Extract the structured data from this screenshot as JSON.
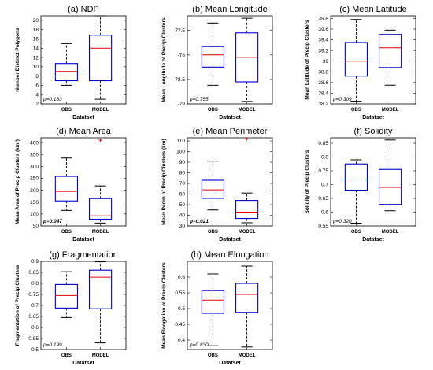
{
  "chart_data": [
    {
      "type": "box",
      "title": "(a) NDP",
      "ylabel": "Number Distinct Polygons",
      "xlabel": "Datatset",
      "categories": [
        "OBS",
        "MODEL"
      ],
      "ylim": [
        2,
        21
      ],
      "yticks": [
        "2",
        "4",
        "6",
        "8",
        "10",
        "12",
        "14",
        "16",
        "18",
        "20"
      ],
      "boxes": [
        {
          "name": "OBS",
          "whisker_low": 6,
          "q1": 7,
          "median": 9,
          "q3": 10.7,
          "whisker_high": 15,
          "outliers": []
        },
        {
          "name": "MODEL",
          "whisker_low": 3,
          "q1": 7,
          "median": 14,
          "q3": 16.8,
          "whisker_high": 21,
          "outliers": []
        }
      ],
      "pvalue": "p=0.183",
      "pvalue_bold": false
    },
    {
      "type": "box",
      "title": "(b) Mean Longitude",
      "ylabel": "Mean Longitude of Precip Clusters",
      "xlabel": "Datatset",
      "categories": [
        "OBS",
        "MODEL"
      ],
      "ylim": [
        -79,
        -77.2
      ],
      "yticks": [
        "-79",
        "-78.5",
        "-78",
        "-77.5"
      ],
      "boxes": [
        {
          "name": "OBS",
          "whisker_low": -78.62,
          "q1": -78.25,
          "median": -78.0,
          "q3": -77.83,
          "whisker_high": -77.35,
          "outliers": []
        },
        {
          "name": "MODEL",
          "whisker_low": -78.95,
          "q1": -78.55,
          "median": -78.05,
          "q3": -77.55,
          "whisker_high": -77.25,
          "outliers": []
        }
      ],
      "pvalue": "p=0.755",
      "pvalue_bold": false
    },
    {
      "type": "box",
      "title": "(c) Mean Latitude",
      "ylabel": "Mean Latitude of Precip Clusters",
      "xlabel": "Datatset",
      "categories": [
        "OBS",
        "MODEL"
      ],
      "ylim": [
        38.2,
        39.85
      ],
      "yticks": [
        "38.2",
        "38.4",
        "38.6",
        "38.8",
        "39",
        "39.2",
        "39.4",
        "39.6",
        "39.8"
      ],
      "boxes": [
        {
          "name": "OBS",
          "whisker_low": 38.25,
          "q1": 38.72,
          "median": 39.0,
          "q3": 39.35,
          "whisker_high": 39.78,
          "outliers": []
        },
        {
          "name": "MODEL",
          "whisker_low": 38.55,
          "q1": 38.88,
          "median": 39.25,
          "q3": 39.5,
          "whisker_high": 39.58,
          "outliers": []
        }
      ],
      "pvalue": "p=0.309",
      "pvalue_bold": false
    },
    {
      "type": "box",
      "title": "(d) Mean Area",
      "ylabel": "Mean Area of Precip Clusters (km²)",
      "xlabel": "Datatset",
      "categories": [
        "OBS",
        "MODEL"
      ],
      "ylim": [
        50,
        420
      ],
      "yticks": [
        "50",
        "100",
        "150",
        "200",
        "250",
        "300",
        "350",
        "400"
      ],
      "boxes": [
        {
          "name": "OBS",
          "whisker_low": 115,
          "q1": 155,
          "median": 195,
          "q3": 258,
          "whisker_high": 335,
          "outliers": []
        },
        {
          "name": "MODEL",
          "whisker_low": 62,
          "q1": 78,
          "median": 92,
          "q3": 165,
          "whisker_high": 218,
          "outliers": [
            410
          ]
        }
      ],
      "pvalue": "p=0.047",
      "pvalue_bold": true
    },
    {
      "type": "box",
      "title": "(e) Mean Perimeter",
      "ylabel": "Mean Perim of Precip Clusters (km)",
      "xlabel": "Datatset",
      "categories": [
        "OBS",
        "MODEL"
      ],
      "ylim": [
        30,
        113
      ],
      "yticks": [
        "30",
        "40",
        "50",
        "60",
        "70",
        "80",
        "90",
        "100",
        "110"
      ],
      "boxes": [
        {
          "name": "OBS",
          "whisker_low": 45,
          "q1": 56,
          "median": 64,
          "q3": 73,
          "whisker_high": 91,
          "outliers": []
        },
        {
          "name": "MODEL",
          "whisker_low": 33,
          "q1": 37,
          "median": 43,
          "q3": 54,
          "whisker_high": 61,
          "outliers": [
            112
          ]
        }
      ],
      "pvalue": "p=0.021",
      "pvalue_bold": true
    },
    {
      "type": "box",
      "title": "(f) Solidity",
      "ylabel": "Solidity of Precip Clusters",
      "xlabel": "Datatset",
      "categories": [
        "OBS",
        "MODEL"
      ],
      "ylim": [
        0.55,
        0.87
      ],
      "yticks": [
        "0.55",
        "0.6",
        "0.65",
        "0.7",
        "0.75",
        "0.8",
        "0.85"
      ],
      "boxes": [
        {
          "name": "OBS",
          "whisker_low": 0.56,
          "q1": 0.68,
          "median": 0.72,
          "q3": 0.775,
          "whisker_high": 0.79,
          "outliers": []
        },
        {
          "name": "MODEL",
          "whisker_low": 0.605,
          "q1": 0.628,
          "median": 0.69,
          "q3": 0.755,
          "whisker_high": 0.862,
          "outliers": []
        }
      ],
      "pvalue": "p=0.320",
      "pvalue_bold": false
    },
    {
      "type": "box",
      "title": "(g) Fragmentation",
      "ylabel": "Fragmentation of Precip Clusters",
      "xlabel": "Datatset",
      "categories": [
        "OBS",
        "MODEL"
      ],
      "ylim": [
        0.5,
        0.9
      ],
      "yticks": [
        "0.5",
        "0.55",
        "0.6",
        "0.65",
        "0.7",
        "0.75",
        "0.8",
        "0.85",
        "0.9"
      ],
      "boxes": [
        {
          "name": "OBS",
          "whisker_low": 0.645,
          "q1": 0.688,
          "median": 0.745,
          "q3": 0.795,
          "whisker_high": 0.853,
          "outliers": []
        },
        {
          "name": "MODEL",
          "whisker_low": 0.53,
          "q1": 0.685,
          "median": 0.828,
          "q3": 0.86,
          "whisker_high": 0.898,
          "outliers": []
        }
      ],
      "pvalue": "p=0.199",
      "pvalue_bold": false
    },
    {
      "type": "box",
      "title": "(h) Mean Elongation",
      "ylabel": "Mean Elongation of Precip Clusters",
      "xlabel": "Datatset",
      "categories": [
        "OBS",
        "MODEL"
      ],
      "ylim": [
        0.37,
        0.65
      ],
      "yticks": [
        "0.4",
        "0.45",
        "0.5",
        "0.55",
        "0.6"
      ],
      "boxes": [
        {
          "name": "OBS",
          "whisker_low": 0.382,
          "q1": 0.485,
          "median": 0.527,
          "q3": 0.557,
          "whisker_high": 0.61,
          "outliers": []
        },
        {
          "name": "MODEL",
          "whisker_low": 0.378,
          "q1": 0.488,
          "median": 0.545,
          "q3": 0.58,
          "whisker_high": 0.635,
          "outliers": []
        }
      ],
      "pvalue": "p=0.830",
      "pvalue_bold": false
    }
  ],
  "colors": {
    "box": "#0000cc",
    "median": "#e00000",
    "whisker": "#000000",
    "outlier": "#e00000",
    "axis": "#000000"
  }
}
